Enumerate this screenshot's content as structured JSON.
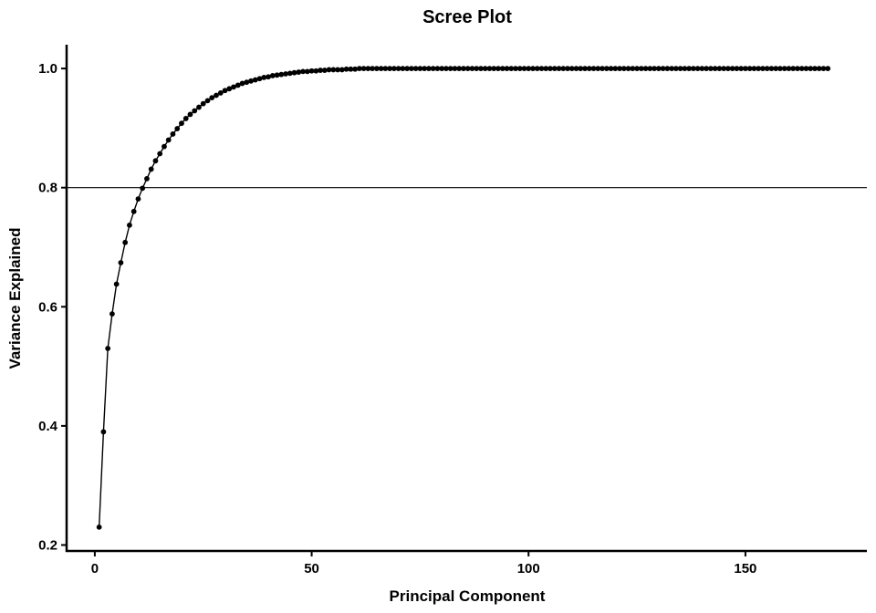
{
  "chart_data": {
    "type": "line",
    "title": "Scree Plot",
    "xlabel": "Principal Component",
    "ylabel": "Variance Explained",
    "xlim": [
      -6.5,
      178
    ],
    "ylim": [
      0.19,
      1.04
    ],
    "xticks": [
      0,
      50,
      100,
      150
    ],
    "xtick_labels": [
      "0",
      "50",
      "100",
      "150"
    ],
    "yticks": [
      0.2,
      0.4,
      0.6,
      0.8,
      1.0
    ],
    "ytick_labels": [
      "0.2",
      "0.4",
      "0.6",
      "0.8",
      "1.0"
    ],
    "threshold": 0.8,
    "grid": false,
    "colors": {
      "line": "#000000",
      "marker": "#000000",
      "axis": "#000000"
    },
    "series": [
      {
        "x_start": 1,
        "x_end": 169,
        "values": [
          0.23,
          0.39,
          0.53,
          0.588,
          0.638,
          0.674,
          0.708,
          0.737,
          0.76,
          0.781,
          0.799,
          0.815,
          0.831,
          0.845,
          0.857,
          0.869,
          0.88,
          0.89,
          0.899,
          0.908,
          0.916,
          0.923,
          0.929,
          0.935,
          0.941,
          0.946,
          0.951,
          0.955,
          0.959,
          0.963,
          0.966,
          0.969,
          0.972,
          0.975,
          0.977,
          0.979,
          0.981,
          0.983,
          0.985,
          0.986,
          0.988,
          0.989,
          0.99,
          0.991,
          0.992,
          0.993,
          0.994,
          0.995,
          0.995,
          0.996,
          0.996,
          0.997,
          0.997,
          0.998,
          0.998,
          0.998,
          0.998,
          0.999,
          0.999,
          0.999
        ],
        "plateau_value": 1.0
      }
    ]
  }
}
